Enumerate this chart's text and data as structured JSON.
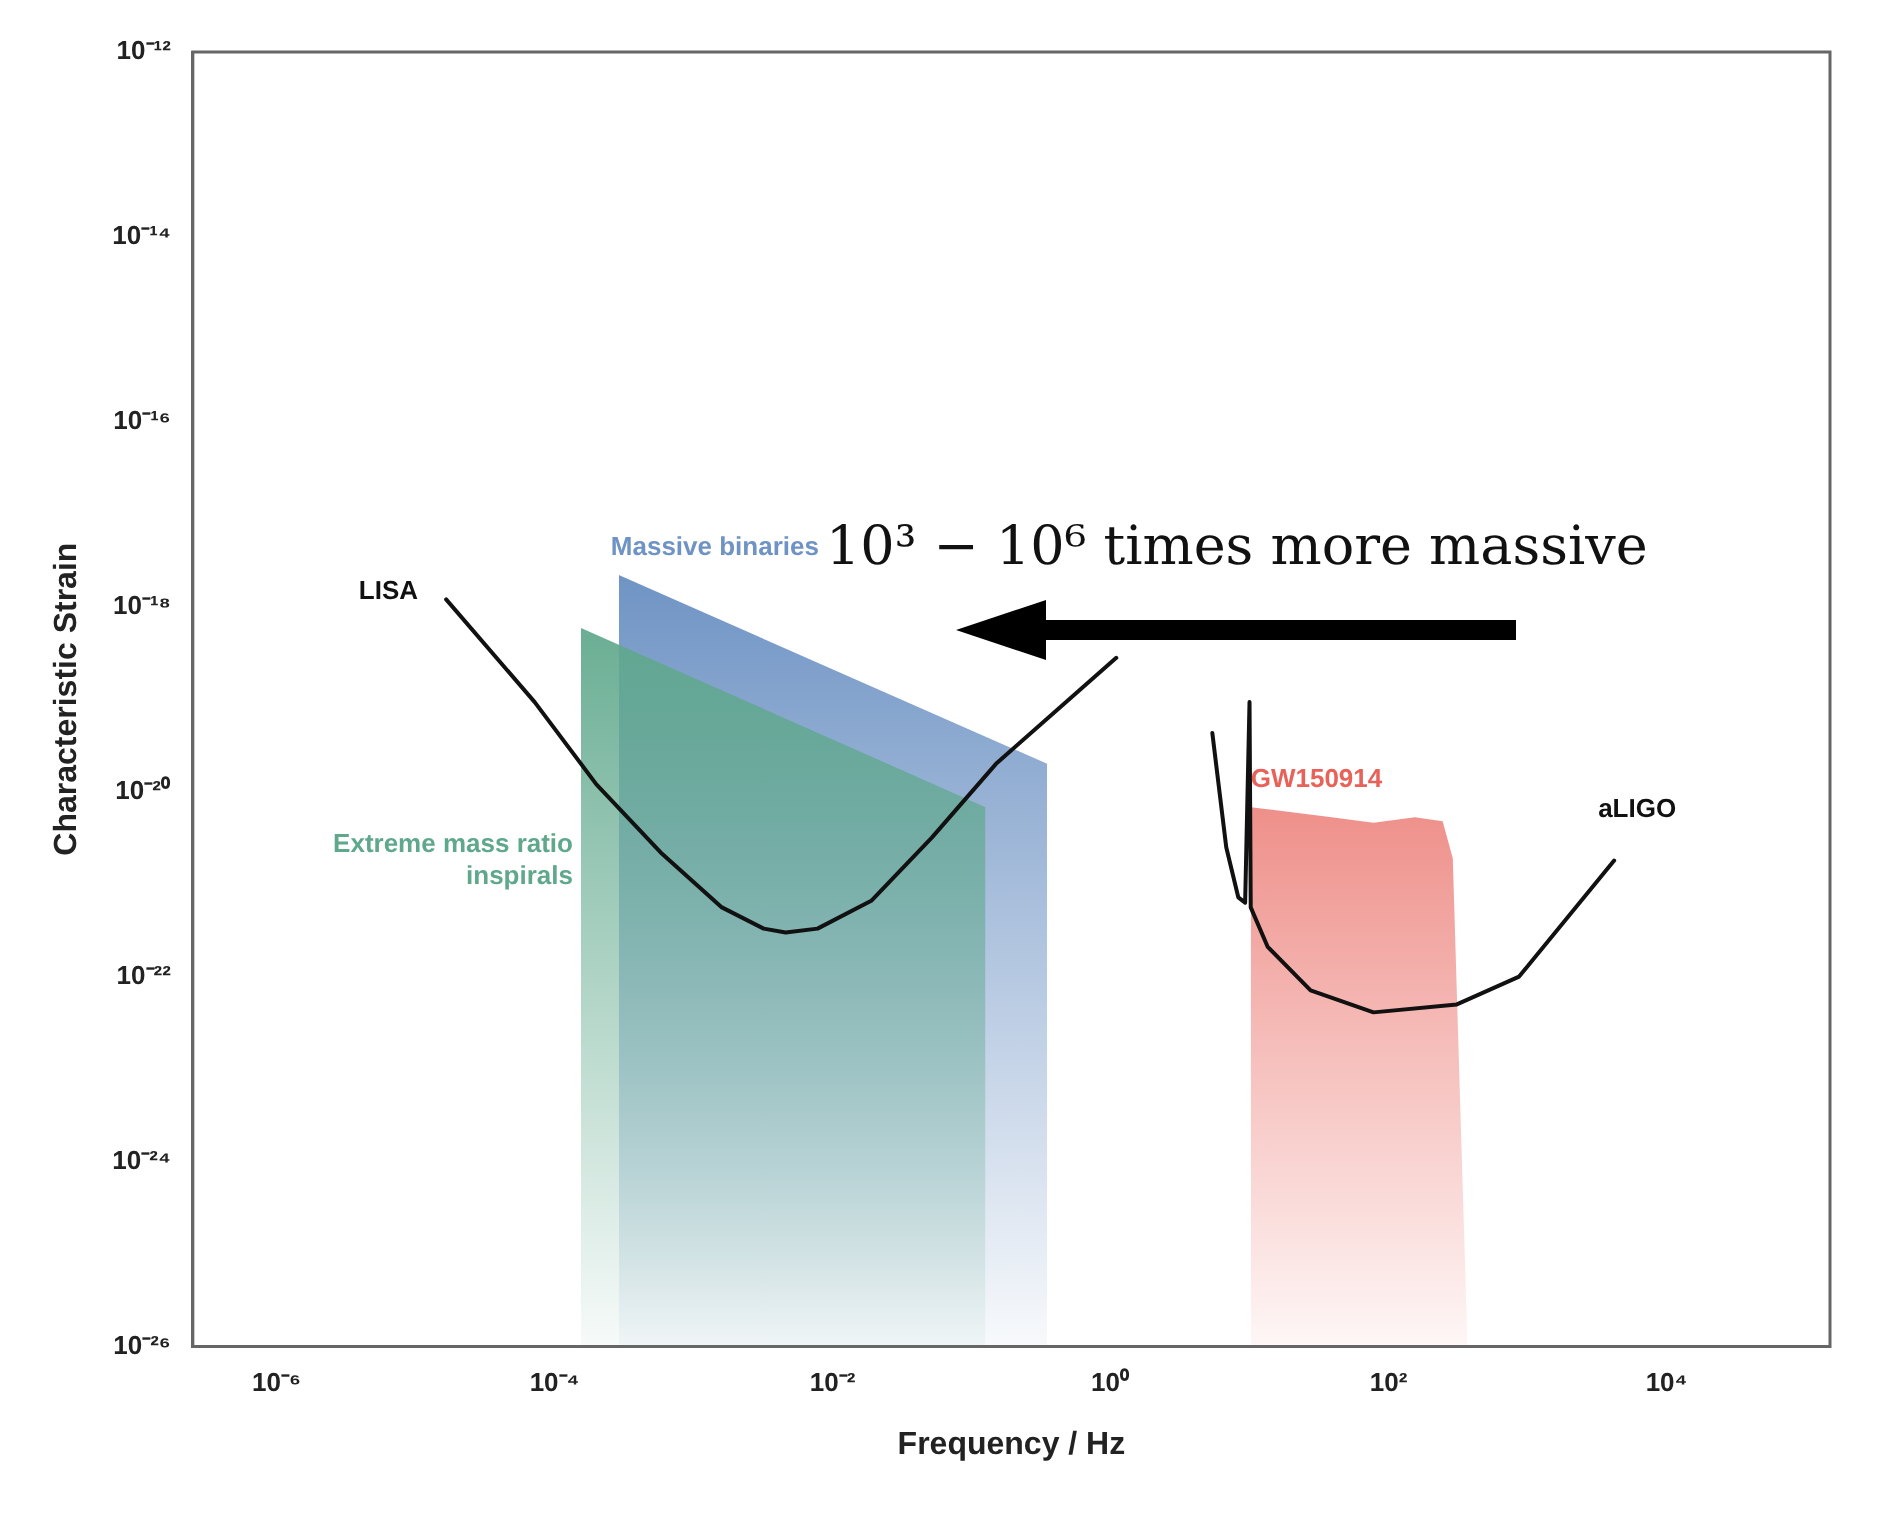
{
  "chart_data": {
    "type": "line",
    "xlabel": "Frequency / Hz",
    "ylabel": "Characteristic Strain",
    "log": "xy",
    "grid": false,
    "legend": false,
    "marker": "none",
    "xlim": [
      2.5e-07,
      150000.0
    ],
    "xticks": [
      {
        "value": 1e-06,
        "label": "10⁻⁶"
      },
      {
        "value": 0.0001,
        "label": "10⁻⁴"
      },
      {
        "value": 0.01,
        "label": "10⁻²"
      },
      {
        "value": 1,
        "label": "10⁰"
      },
      {
        "value": 100,
        "label": "10²"
      },
      {
        "value": 10000,
        "label": "10⁴"
      }
    ],
    "ylim": [
      1e-26,
      1e-12
    ],
    "yticks": [
      {
        "value": 1e-26,
        "label": "10⁻²⁶"
      },
      {
        "value": 1e-24,
        "label": "10⁻²⁴"
      },
      {
        "value": 1e-22,
        "label": "10⁻²²"
      },
      {
        "value": 1e-20,
        "label": "10⁻²⁰"
      },
      {
        "value": 1e-18,
        "label": "10⁻¹⁸"
      },
      {
        "value": 1e-16,
        "label": "10⁻¹⁶"
      },
      {
        "value": 1e-14,
        "label": "10⁻¹⁴"
      },
      {
        "value": 1e-12,
        "label": "10⁻¹²"
      }
    ],
    "annotations": [
      "10³ − 10⁶ times more massive"
    ],
    "series": [
      {
        "name": "Extreme mass ratio inspirals",
        "type": "area",
        "color": "#5fa88c",
        "x": [
          0.000155,
          0.126
        ],
        "values": [
          5.9e-19,
          6.8e-21
        ]
      },
      {
        "name": "Massive binaries",
        "type": "area",
        "color": "#6e93c4",
        "x": [
          0.00029,
          0.35
        ],
        "values": [
          2.2e-18,
          2e-20
        ]
      },
      {
        "name": "GW150914",
        "type": "area",
        "color": "#e8625a",
        "x": [
          10.2,
          39,
          78,
          155,
          245,
          290,
          370
        ],
        "values": [
          6.8e-21,
          5.3e-21,
          4.6e-21,
          5.3e-21,
          4.8e-21,
          1.9e-21,
          1e-26
        ]
      },
      {
        "name": "LISA",
        "color": "#111111",
        "x": [
          1.66e-05,
          7.2e-05,
          0.0002,
          0.00058,
          0.0016,
          0.0032,
          0.0046,
          0.0078,
          0.019,
          0.052,
          0.15,
          0.43,
          1.1
        ],
        "values": [
          1.2e-18,
          9.3e-20,
          1.2e-20,
          2.2e-21,
          5.6e-22,
          3.3e-22,
          3e-22,
          3.3e-22,
          6.6e-22,
          3.2e-21,
          2e-20,
          8.1e-20,
          2.8e-19
        ]
      },
      {
        "name": "aLIGO",
        "color": "#111111",
        "x": [
          5.4,
          6.8,
          8.3,
          9.3,
          10,
          10.2,
          13.5,
          27.5,
          78,
          310,
          870,
          4200
        ],
        "values": [
          4.3e-20,
          2.5e-21,
          7.2e-22,
          6.3e-22,
          9.3e-20,
          5.6e-22,
          2.1e-22,
          7.1e-23,
          4.1e-23,
          5e-23,
          1e-22,
          1.8e-21
        ]
      }
    ]
  }
}
